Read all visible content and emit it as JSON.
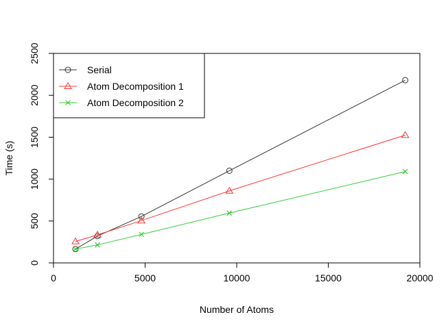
{
  "chart_data": {
    "type": "line",
    "title": "",
    "xlabel": "Number of Atoms",
    "ylabel": "Time (s)",
    "xlim": [
      0,
      20000
    ],
    "ylim": [
      0,
      2500
    ],
    "xticks": [
      0,
      5000,
      10000,
      15000,
      20000
    ],
    "yticks": [
      0,
      500,
      1000,
      1500,
      2000,
      2500
    ],
    "xtick_labels": [
      "0",
      "5000",
      "10000",
      "15000",
      "20000"
    ],
    "ytick_labels": [
      "0",
      "500",
      "1000",
      "1500",
      "2000",
      "2500"
    ],
    "grid": false,
    "legend_position": "top-left",
    "x": [
      1200,
      2400,
      4800,
      9600,
      19200
    ],
    "series": [
      {
        "name": "Serial",
        "values": [
          165,
          320,
          555,
          1100,
          2180
        ],
        "color": "#333333",
        "marker": "circle"
      },
      {
        "name": "Atom Decomposition 1",
        "values": [
          255,
          335,
          505,
          860,
          1525
        ],
        "color": "#ff3333",
        "marker": "triangle"
      },
      {
        "name": "Atom Decomposition 2",
        "values": [
          165,
          215,
          340,
          595,
          1090
        ],
        "color": "#33cc33",
        "marker": "cross"
      }
    ]
  }
}
